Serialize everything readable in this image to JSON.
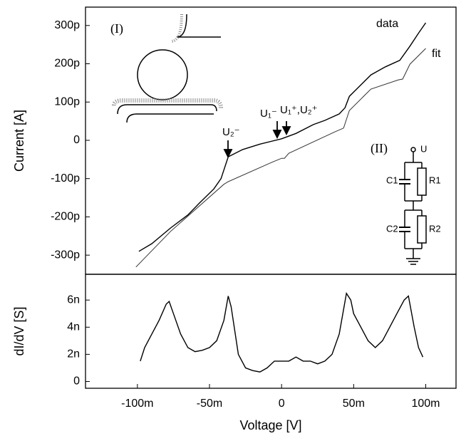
{
  "chart_data": [
    {
      "type": "line",
      "ylabel": "Current [A]",
      "xlim": [
        -0.136,
        0.121
      ],
      "ylim": [
        -3.5e-10,
        3.48e-10
      ],
      "yticks": [
        {
          "value": -3e-10,
          "label": "-300p"
        },
        {
          "value": -2e-10,
          "label": "-200p"
        },
        {
          "value": -1e-10,
          "label": "-100p"
        },
        0,
        {
          "value": 1e-10,
          "label": "100p"
        },
        {
          "value": 2e-10,
          "label": "200p"
        },
        {
          "value": 3e-10,
          "label": "300p"
        }
      ],
      "series": [
        {
          "name": "data",
          "color": "#000000",
          "x": [
            -0.099,
            -0.09,
            -0.077,
            -0.065,
            -0.057,
            -0.047,
            -0.042,
            -0.037,
            -0.027,
            -0.015,
            0,
            0.01,
            0.022,
            0.03,
            0.04,
            0.044,
            0.047,
            0.055,
            0.062,
            0.072,
            0.082,
            0.089,
            0.095,
            0.1
          ],
          "values": [
            -2.9e-10,
            -2.7e-10,
            -2.29e-10,
            -1.95e-10,
            -1.64e-10,
            -1.27e-10,
            -1e-10,
            -4.3e-11,
            -2.4e-11,
            -1e-11,
            4e-12,
            1.8e-11,
            4.1e-11,
            5.2e-11,
            6.9e-11,
            8.5e-11,
            1.15e-10,
            1.45e-10,
            1.71e-10,
            1.92e-10,
            2.09e-10,
            2.46e-10,
            2.8e-10,
            3.07e-10
          ]
        },
        {
          "name": "fit",
          "color": "#333333",
          "x": [
            -0.101,
            -0.077,
            -0.04,
            -0.037,
            -0.007,
            0,
            0.002,
            0.005,
            0.037,
            0.043,
            0.047,
            0.062,
            0.081,
            0.084,
            0.089,
            0.1
          ],
          "values": [
            -3.31e-10,
            -2.38e-10,
            -1.15e-10,
            -1.08e-10,
            -5.8e-11,
            -4.7e-11,
            -4.7e-11,
            -3.4e-11,
            2.2e-11,
            3.2e-11,
            7.8e-11,
            1.34e-10,
            1.58e-10,
            1.6e-10,
            1.99e-10,
            2.4e-10
          ]
        }
      ],
      "annotations": [
        "(I)",
        "(II)",
        "U₂⁻",
        "U₁⁻",
        "U₁⁺,U₂⁺",
        "U",
        "C1",
        "R1",
        "C2",
        "R2"
      ]
    },
    {
      "type": "line",
      "xlabel": "Voltage [V]",
      "ylabel": "dI/dV [S]",
      "xlim": [
        -0.136,
        0.121
      ],
      "ylim": [
        -5e-10,
        7.9e-09
      ],
      "xticks": [
        {
          "value": -0.1,
          "label": "-100m"
        },
        {
          "value": -0.05,
          "label": "-50m"
        },
        0,
        {
          "value": 0.05,
          "label": "50m"
        },
        {
          "value": 0.1,
          "label": "100m"
        }
      ],
      "yticks": [
        0,
        {
          "value": 2e-09,
          "label": "2n"
        },
        {
          "value": 4e-09,
          "label": "4n"
        },
        {
          "value": 6e-09,
          "label": "6n"
        }
      ],
      "series": [
        {
          "color": "#000000",
          "x": [
            -0.098,
            -0.095,
            -0.09,
            -0.085,
            -0.08,
            -0.078,
            -0.075,
            -0.07,
            -0.065,
            -0.06,
            -0.055,
            -0.05,
            -0.045,
            -0.04,
            -0.037,
            -0.035,
            -0.03,
            -0.025,
            -0.02,
            -0.015,
            -0.01,
            -0.005,
            0,
            0.005,
            0.01,
            0.015,
            0.02,
            0.025,
            0.03,
            0.035,
            0.04,
            0.045,
            0.048,
            0.05,
            0.055,
            0.06,
            0.065,
            0.07,
            0.075,
            0.08,
            0.085,
            0.088,
            0.092,
            0.095,
            0.098
          ],
          "values": [
            1.5e-09,
            2.5e-09,
            3.5e-09,
            4.5e-09,
            5.7e-09,
            5.9e-09,
            5e-09,
            3.5e-09,
            2.5e-09,
            2.2e-09,
            2.3e-09,
            2.5e-09,
            3e-09,
            4.5e-09,
            6.3e-09,
            5.5e-09,
            2e-09,
            1e-09,
            8e-10,
            7e-10,
            1e-09,
            1.5e-09,
            1.5e-09,
            1.5e-09,
            1.8e-09,
            1.5e-09,
            1.5e-09,
            1.3e-09,
            1.5e-09,
            2e-09,
            3.5e-09,
            6.5e-09,
            6e-09,
            5e-09,
            4e-09,
            3e-09,
            2.5e-09,
            3e-09,
            4e-09,
            5e-09,
            6e-09,
            6.3e-09,
            4e-09,
            2.5e-09,
            1.8e-09
          ]
        }
      ]
    }
  ]
}
